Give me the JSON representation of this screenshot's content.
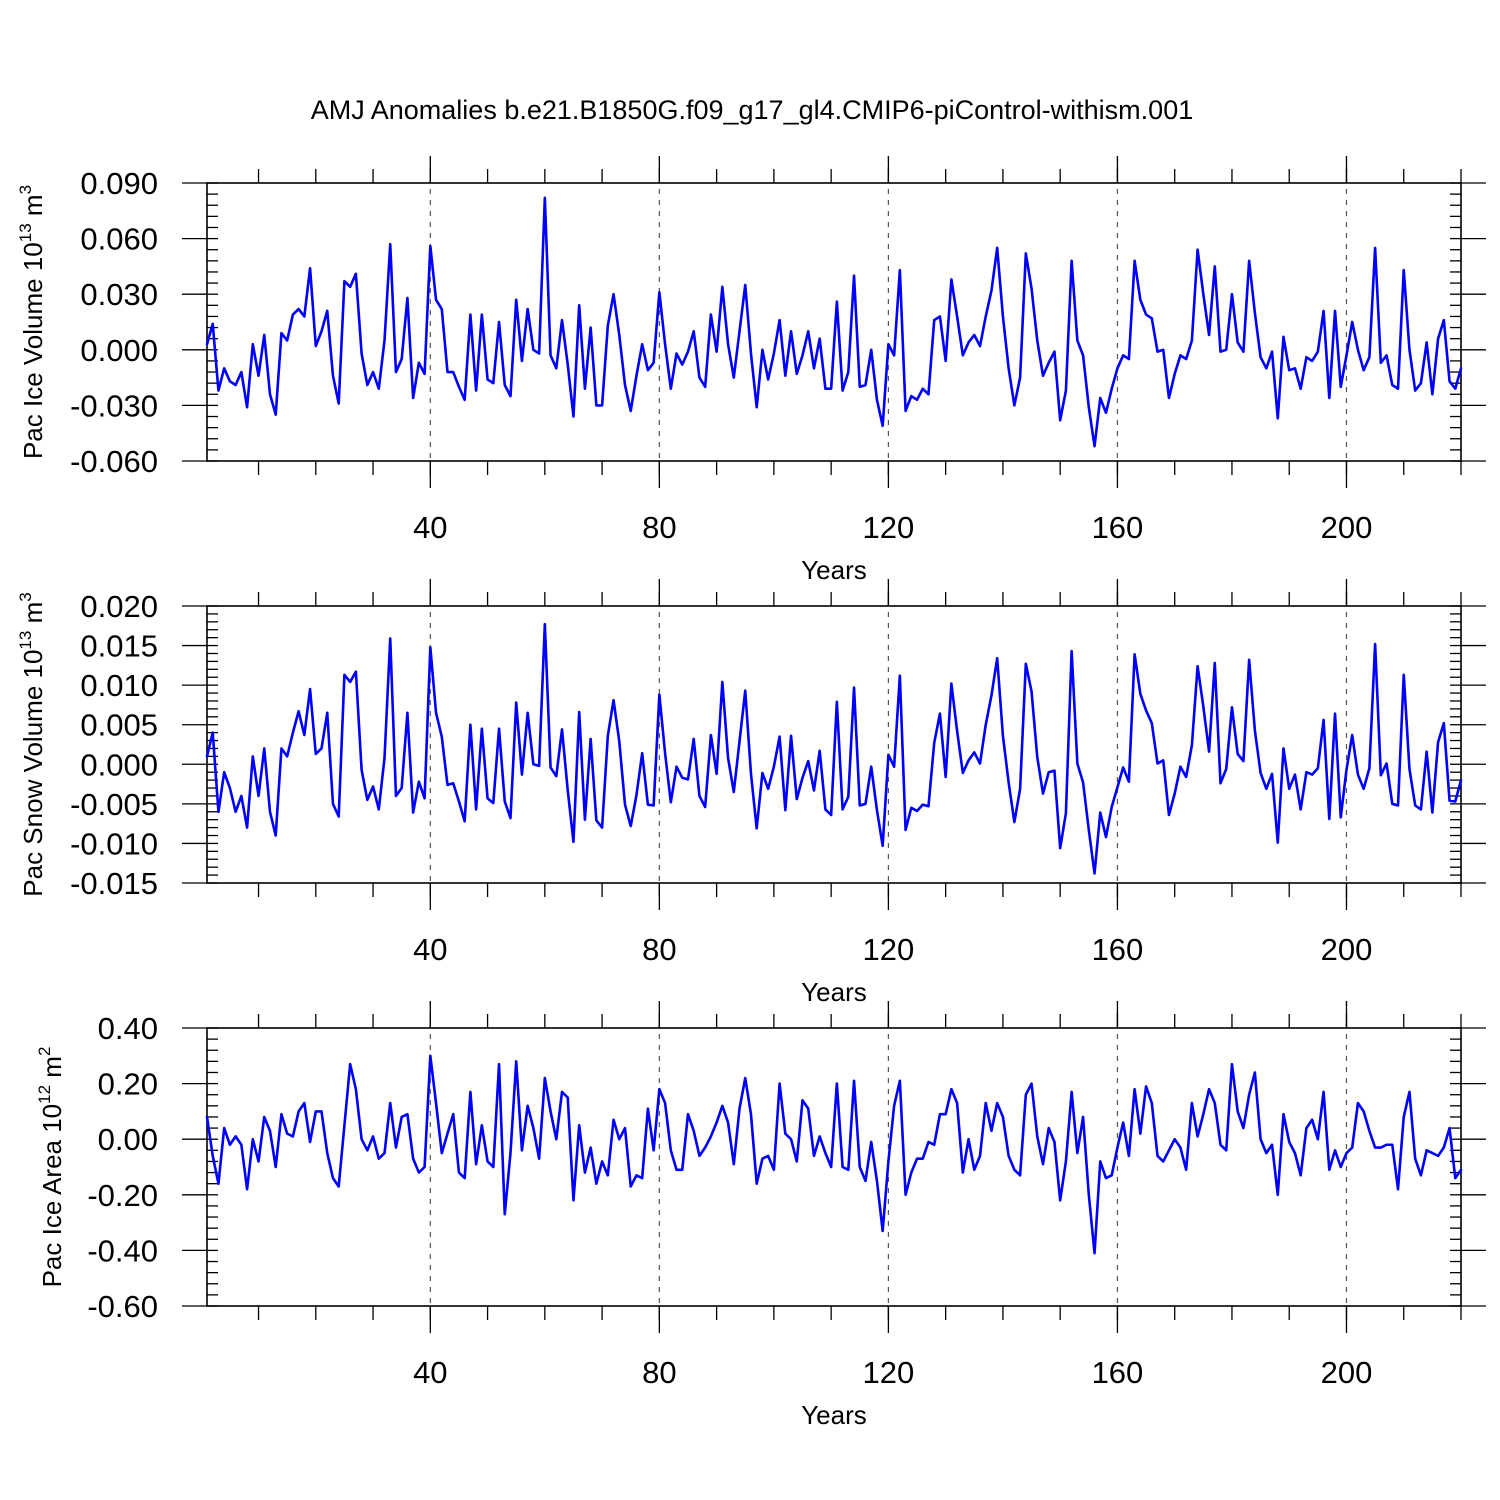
{
  "title": "AMJ Anomalies b.e21.B1850G.f09_g17_gl4.CMIP6-piControl-withism.001",
  "colors": {
    "series": "#0000ff",
    "axis": "#000000",
    "grid": "#555555"
  },
  "chart_data": [
    {
      "type": "line",
      "ylabel": "Pac Ice Volume",
      "ylabel_unit": "10",
      "ylabel_exp": "13",
      "ylabel_unit2": " m",
      "ylabel_exp2": "3",
      "xlabel": "Years",
      "xlim": [
        1,
        220
      ],
      "ylim": [
        -0.06,
        0.09
      ],
      "yticks": [
        -0.06,
        -0.03,
        0.0,
        0.03,
        0.06,
        0.09
      ],
      "ytick_labels": [
        "-0.060",
        "-0.030",
        "0.000",
        "0.030",
        "0.060",
        "0.090"
      ],
      "yminor": [
        -0.06,
        -0.054,
        -0.048,
        -0.042,
        -0.036,
        -0.03,
        -0.024,
        -0.018,
        -0.012,
        -0.006,
        0.0,
        0.006,
        0.012,
        0.018,
        0.024,
        0.03,
        0.036,
        0.042,
        0.048,
        0.054,
        0.06,
        0.066,
        0.072,
        0.078,
        0.084,
        0.09
      ],
      "xticks": [
        40,
        80,
        120,
        160,
        200
      ],
      "xtick_labels": [
        "40",
        "80",
        "120",
        "160",
        "200"
      ],
      "xminor": [
        10,
        20,
        30,
        40,
        50,
        60,
        70,
        80,
        90,
        100,
        110,
        120,
        130,
        140,
        150,
        160,
        170,
        180,
        190,
        200,
        210,
        220
      ],
      "grid_x": [
        40,
        80,
        120,
        160,
        200
      ],
      "series": [
        {
          "name": "Pac Ice Volume",
          "x_start": 1,
          "values": [
            0.003,
            0.014,
            -0.022,
            -0.01,
            -0.017,
            -0.019,
            -0.012,
            -0.031,
            0.003,
            -0.014,
            0.008,
            -0.024,
            -0.035,
            0.009,
            0.005,
            0.019,
            0.022,
            0.018,
            0.044,
            0.002,
            0.01,
            0.021,
            -0.014,
            -0.029,
            0.037,
            0.034,
            0.041,
            -0.002,
            -0.019,
            -0.012,
            -0.021,
            0.005,
            0.057,
            -0.012,
            -0.005,
            0.028,
            -0.026,
            -0.007,
            -0.013,
            0.056,
            0.027,
            0.022,
            -0.012,
            -0.012,
            -0.02,
            -0.027,
            0.019,
            -0.022,
            0.019,
            -0.016,
            -0.018,
            0.015,
            -0.019,
            -0.025,
            0.027,
            -0.006,
            0.022,
            0.0,
            -0.002,
            0.082,
            -0.003,
            -0.01,
            0.016,
            -0.008,
            -0.036,
            0.024,
            -0.021,
            0.012,
            -0.03,
            -0.03,
            0.013,
            0.03,
            0.008,
            -0.019,
            -0.033,
            -0.014,
            0.003,
            -0.011,
            -0.007,
            0.031,
            0.003,
            -0.021,
            -0.002,
            -0.008,
            -0.001,
            0.01,
            -0.015,
            -0.02,
            0.019,
            -0.001,
            0.034,
            0.003,
            -0.015,
            0.01,
            0.035,
            -0.002,
            -0.031,
            0.0,
            -0.016,
            -0.002,
            0.016,
            -0.014,
            0.01,
            -0.013,
            -0.003,
            0.01,
            -0.01,
            0.006,
            -0.021,
            -0.021,
            0.026,
            -0.022,
            -0.012,
            0.04,
            -0.02,
            -0.019,
            0.0,
            -0.027,
            -0.041,
            0.003,
            -0.003,
            0.043,
            -0.033,
            -0.025,
            -0.027,
            -0.021,
            -0.024,
            0.016,
            0.018,
            -0.006,
            0.038,
            0.018,
            -0.003,
            0.004,
            0.008,
            0.002,
            0.018,
            0.032,
            0.055,
            0.018,
            -0.01,
            -0.03,
            -0.015,
            0.052,
            0.033,
            0.005,
            -0.014,
            -0.007,
            -0.001,
            -0.038,
            -0.022,
            0.048,
            0.005,
            -0.003,
            -0.031,
            -0.052,
            -0.026,
            -0.034,
            -0.021,
            -0.01,
            -0.003,
            -0.005,
            0.048,
            0.027,
            0.019,
            0.017,
            -0.001,
            0.0,
            -0.026,
            -0.013,
            -0.003,
            -0.005,
            0.005,
            0.054,
            0.03,
            0.008,
            0.045,
            -0.001,
            0.0,
            0.03,
            0.004,
            -0.001,
            0.048,
            0.02,
            -0.004,
            -0.01,
            -0.001,
            -0.037,
            0.007,
            -0.011,
            -0.01,
            -0.021,
            -0.004,
            -0.006,
            -0.001,
            0.021,
            -0.026,
            0.021,
            -0.02,
            -0.003,
            0.015,
            0.0,
            -0.011,
            -0.004,
            0.055,
            -0.007,
            -0.003,
            -0.019,
            -0.021,
            0.043,
            0.0,
            -0.022,
            -0.018,
            0.004,
            -0.024,
            0.006,
            0.016,
            -0.017,
            -0.021,
            -0.01
          ]
        }
      ]
    },
    {
      "type": "line",
      "ylabel": "Pac Snow Volume",
      "ylabel_unit": "10",
      "ylabel_exp": "13",
      "ylabel_unit2": " m",
      "ylabel_exp2": "3",
      "xlabel": "Years",
      "xlim": [
        1,
        220
      ],
      "ylim": [
        -0.015,
        0.02
      ],
      "yticks": [
        -0.015,
        -0.01,
        -0.005,
        0.0,
        0.005,
        0.01,
        0.015,
        0.02
      ],
      "ytick_labels": [
        "-0.015",
        "-0.010",
        "-0.005",
        "0.000",
        "0.005",
        "0.010",
        "0.015",
        "0.020"
      ],
      "yminor": [
        -0.015,
        -0.014,
        -0.013,
        -0.012,
        -0.011,
        -0.01,
        -0.009,
        -0.008,
        -0.007,
        -0.006,
        -0.005,
        -0.004,
        -0.003,
        -0.002,
        -0.001,
        0.0,
        0.001,
        0.002,
        0.003,
        0.004,
        0.005,
        0.006,
        0.007,
        0.008,
        0.009,
        0.01,
        0.011,
        0.012,
        0.013,
        0.014,
        0.015,
        0.016,
        0.017,
        0.018,
        0.019,
        0.02
      ],
      "xticks": [
        40,
        80,
        120,
        160,
        200
      ],
      "xtick_labels": [
        "40",
        "80",
        "120",
        "160",
        "200"
      ],
      "xminor": [
        10,
        20,
        30,
        40,
        50,
        60,
        70,
        80,
        90,
        100,
        110,
        120,
        130,
        140,
        150,
        160,
        170,
        180,
        190,
        200,
        210,
        220
      ],
      "grid_x": [
        40,
        80,
        120,
        160,
        200
      ],
      "series": [
        {
          "name": "Pac Snow Volume",
          "x_start": 1,
          "values": [
            0.001,
            0.004,
            -0.006,
            -0.001,
            -0.003,
            -0.006,
            -0.004,
            -0.008,
            0.001,
            -0.004,
            0.002,
            -0.006,
            -0.009,
            0.002,
            0.001,
            0.004,
            0.0067,
            0.0037,
            0.0095,
            0.0013,
            0.002,
            0.0065,
            -0.005,
            -0.0066,
            0.0113,
            0.0104,
            0.0117,
            -0.0007,
            -0.0045,
            -0.0028,
            -0.0057,
            0.0008,
            0.0159,
            -0.004,
            -0.003,
            0.0065,
            -0.0061,
            -0.0022,
            -0.0043,
            0.0148,
            0.0065,
            0.0035,
            -0.0026,
            -0.0024,
            -0.0047,
            -0.0072,
            0.005,
            -0.0057,
            0.0045,
            -0.0043,
            -0.0049,
            0.0045,
            -0.0047,
            -0.0068,
            0.0078,
            -0.0013,
            0.0065,
            0.0,
            -0.0002,
            0.0177,
            -0.0004,
            -0.0015,
            0.0044,
            -0.0033,
            -0.0098,
            0.0066,
            -0.007,
            0.0032,
            -0.0071,
            -0.008,
            0.0036,
            0.0081,
            0.0029,
            -0.0051,
            -0.0078,
            -0.0039,
            0.0014,
            -0.0051,
            -0.0052,
            0.0088,
            0.0014,
            -0.0048,
            -0.0003,
            -0.0017,
            -0.0019,
            0.0032,
            -0.004,
            -0.0054,
            0.0037,
            -0.0012,
            0.0104,
            0.0008,
            -0.0035,
            0.0029,
            0.0093,
            -0.0012,
            -0.0081,
            -0.0011,
            -0.0031,
            -0.0003,
            0.0035,
            -0.0058,
            0.0036,
            -0.0044,
            -0.0017,
            0.0004,
            -0.0033,
            0.0017,
            -0.0057,
            -0.0064,
            0.0079,
            -0.0057,
            -0.0041,
            0.0097,
            -0.0052,
            -0.005,
            -0.0003,
            -0.0058,
            -0.0103,
            0.0012,
            -0.0003,
            0.0112,
            -0.0083,
            -0.0055,
            -0.0059,
            -0.0051,
            -0.0053,
            0.0027,
            0.0064,
            -0.0016,
            0.0102,
            0.0042,
            -0.0011,
            0.0005,
            0.0015,
            0.0001,
            0.005,
            0.0087,
            0.0134,
            0.0036,
            -0.0023,
            -0.0073,
            -0.0031,
            0.0127,
            0.0092,
            0.0009,
            -0.0037,
            -0.001,
            -0.0008,
            -0.0106,
            -0.0062,
            0.0143,
            0.0001,
            -0.0023,
            -0.0083,
            -0.0138,
            -0.0061,
            -0.0092,
            -0.0054,
            -0.0029,
            -0.0004,
            -0.0022,
            0.0139,
            0.0089,
            0.0068,
            0.0052,
            0.0001,
            0.0005,
            -0.0064,
            -0.0037,
            -0.0003,
            -0.0016,
            0.0024,
            0.0124,
            0.0073,
            0.0016,
            0.0128,
            -0.0024,
            -0.0006,
            0.0072,
            0.0013,
            0.0004,
            0.0132,
            0.0043,
            -0.0011,
            -0.0031,
            -0.0012,
            -0.0099,
            0.002,
            -0.0031,
            -0.0013,
            -0.0057,
            -0.001,
            -0.0013,
            -0.0005,
            0.0056,
            -0.0069,
            0.0064,
            -0.0067,
            -0.0007,
            0.0037,
            -0.0013,
            -0.0031,
            -0.0005,
            0.0152,
            -0.0014,
            0.0001,
            -0.005,
            -0.0052,
            0.0113,
            -0.0006,
            -0.0052,
            -0.0057,
            0.0016,
            -0.0061,
            0.0028,
            0.0052,
            -0.0046,
            -0.0047,
            -0.002
          ]
        }
      ]
    },
    {
      "type": "line",
      "ylabel": "Pac Ice Area",
      "ylabel_unit": "10",
      "ylabel_exp": "12",
      "ylabel_unit2": " m",
      "ylabel_exp2": "2",
      "xlabel": "Years",
      "xlim": [
        1,
        220
      ],
      "ylim": [
        -0.6,
        0.4
      ],
      "yticks": [
        -0.6,
        -0.4,
        -0.2,
        0.0,
        0.2,
        0.4
      ],
      "ytick_labels": [
        "-0.60",
        "-0.40",
        "-0.20",
        "0.00",
        "0.20",
        "0.40"
      ],
      "yminor": [
        -0.6,
        -0.56,
        -0.52,
        -0.48,
        -0.44,
        -0.4,
        -0.36,
        -0.32,
        -0.28,
        -0.24,
        -0.2,
        -0.16,
        -0.12,
        -0.08,
        -0.04,
        0.0,
        0.04,
        0.08,
        0.12,
        0.16,
        0.2,
        0.24,
        0.28,
        0.32,
        0.36,
        0.4
      ],
      "xticks": [
        40,
        80,
        120,
        160,
        200
      ],
      "xtick_labels": [
        "40",
        "80",
        "120",
        "160",
        "200"
      ],
      "xminor": [
        10,
        20,
        30,
        40,
        50,
        60,
        70,
        80,
        90,
        100,
        110,
        120,
        130,
        140,
        150,
        160,
        170,
        180,
        190,
        200,
        210,
        220
      ],
      "grid_x": [
        40,
        80,
        120,
        160,
        200
      ],
      "series": [
        {
          "name": "Pac Ice Area",
          "x_start": 1,
          "values": [
            0.08,
            -0.06,
            -0.16,
            0.04,
            -0.02,
            0.01,
            -0.02,
            -0.18,
            0.0,
            -0.08,
            0.08,
            0.03,
            -0.1,
            0.09,
            0.02,
            0.01,
            0.1,
            0.13,
            -0.01,
            0.1,
            0.1,
            -0.05,
            -0.14,
            -0.17,
            0.05,
            0.27,
            0.18,
            0.0,
            -0.04,
            0.01,
            -0.07,
            -0.05,
            0.13,
            -0.03,
            0.08,
            0.09,
            -0.07,
            -0.12,
            -0.1,
            0.3,
            0.13,
            -0.05,
            0.02,
            0.09,
            -0.12,
            -0.14,
            0.17,
            -0.09,
            0.05,
            -0.08,
            -0.1,
            0.27,
            -0.27,
            -0.05,
            0.28,
            -0.04,
            0.12,
            0.04,
            -0.07,
            0.22,
            0.1,
            0.0,
            0.17,
            0.15,
            -0.22,
            0.05,
            -0.12,
            -0.03,
            -0.16,
            -0.08,
            -0.13,
            0.07,
            0.0,
            0.04,
            -0.17,
            -0.13,
            -0.14,
            0.11,
            -0.04,
            0.18,
            0.13,
            -0.04,
            -0.11,
            -0.11,
            0.09,
            0.03,
            -0.06,
            -0.03,
            0.01,
            0.06,
            0.12,
            0.06,
            -0.09,
            0.11,
            0.22,
            0.09,
            -0.16,
            -0.07,
            -0.06,
            -0.11,
            0.2,
            0.02,
            0.0,
            -0.08,
            0.14,
            0.11,
            -0.06,
            0.01,
            -0.05,
            -0.1,
            0.2,
            -0.1,
            -0.11,
            0.21,
            -0.1,
            -0.15,
            -0.01,
            -0.15,
            -0.33,
            -0.08,
            0.12,
            0.21,
            -0.2,
            -0.12,
            -0.07,
            -0.07,
            -0.01,
            -0.02,
            0.09,
            0.09,
            0.18,
            0.13,
            -0.12,
            0.0,
            -0.11,
            -0.06,
            0.13,
            0.03,
            0.13,
            0.08,
            -0.06,
            -0.11,
            -0.13,
            0.16,
            0.2,
            0.01,
            -0.09,
            0.04,
            -0.01,
            -0.22,
            -0.08,
            0.17,
            -0.05,
            0.08,
            -0.2,
            -0.41,
            -0.08,
            -0.14,
            -0.13,
            -0.03,
            0.06,
            -0.06,
            0.18,
            0.02,
            0.19,
            0.13,
            -0.06,
            -0.08,
            -0.04,
            0.0,
            -0.03,
            -0.11,
            0.13,
            0.01,
            0.09,
            0.18,
            0.13,
            -0.02,
            -0.04,
            0.27,
            0.1,
            0.04,
            0.16,
            0.24,
            0.0,
            -0.05,
            -0.02,
            -0.2,
            0.09,
            -0.01,
            -0.05,
            -0.13,
            0.04,
            0.07,
            0.0,
            0.17,
            -0.11,
            -0.04,
            -0.1,
            -0.05,
            -0.03,
            0.13,
            0.1,
            0.03,
            -0.03,
            -0.03,
            -0.02,
            -0.02,
            -0.18,
            0.08,
            0.17,
            -0.07,
            -0.13,
            -0.04,
            -0.05,
            -0.06,
            -0.03,
            0.04,
            -0.14,
            -0.11
          ]
        }
      ]
    }
  ]
}
